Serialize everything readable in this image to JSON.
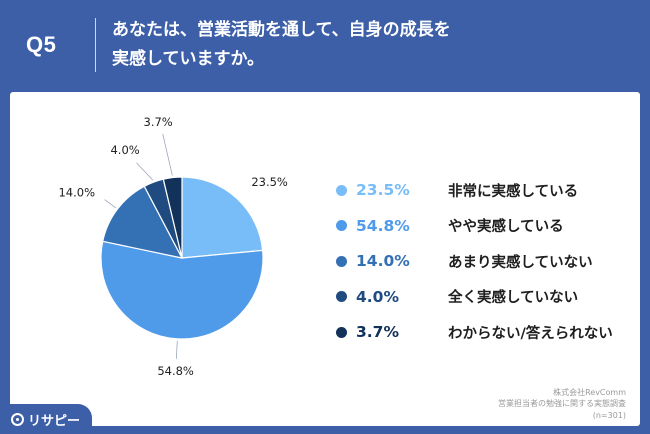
{
  "header": {
    "q_label": "Q5",
    "question_line1": "あなたは、営業活動を通して、自身の成長を",
    "question_line2": "実感していますか。"
  },
  "chart_data": {
    "type": "pie",
    "start_angle_deg": 0,
    "direction": "clockwise",
    "slices": [
      {
        "label": "非常に実感している",
        "value": 23.5,
        "value_label": "23.5%",
        "color": "#79bdf8"
      },
      {
        "label": "やや実感している",
        "value": 54.8,
        "value_label": "54.8%",
        "color": "#4f9bea"
      },
      {
        "label": "あまり実感していない",
        "value": 14.0,
        "value_label": "14.0%",
        "color": "#3470b4"
      },
      {
        "label": "全く実感していない",
        "value": 4.0,
        "value_label": "4.0%",
        "color": "#204b80"
      },
      {
        "label": "わからない/答えられない",
        "value": 3.7,
        "value_label": "3.7%",
        "color": "#13325a"
      }
    ]
  },
  "source": {
    "line1": "株式会社RevComm",
    "line2": "営業担当者の勉強に関する実態調査",
    "line3": "(n=301)"
  },
  "logo": {
    "text": "リサピー"
  }
}
